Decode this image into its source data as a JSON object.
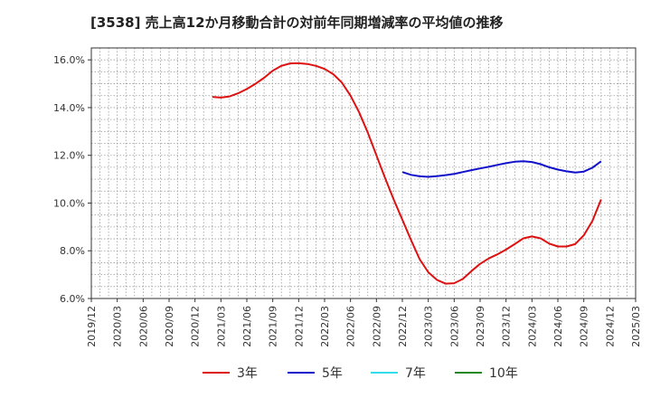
{
  "chart_data": {
    "type": "line",
    "title": "[3538]  売上高12か月移動合計の対前年同期増減率の平均値の推移",
    "x_categories": [
      "2019/12",
      "2020/03",
      "2020/06",
      "2020/09",
      "2020/12",
      "2021/03",
      "2021/06",
      "2021/09",
      "2021/12",
      "2022/03",
      "2022/06",
      "2022/09",
      "2022/12",
      "2023/03",
      "2023/06",
      "2023/09",
      "2023/12",
      "2024/03",
      "2024/06",
      "2024/09",
      "2024/12",
      "2025/03"
    ],
    "y_ticks": [
      "6.0%",
      "8.0%",
      "10.0%",
      "12.0%",
      "14.0%",
      "16.0%"
    ],
    "ylim": [
      6.0,
      16.5
    ],
    "grid": true,
    "legend_position": "bottom",
    "series": [
      {
        "name": "3年",
        "color": "#dd1111",
        "points": [
          [
            "2021/02",
            14.45
          ],
          [
            "2021/03",
            14.42
          ],
          [
            "2021/04",
            14.47
          ],
          [
            "2021/05",
            14.6
          ],
          [
            "2021/06",
            14.78
          ],
          [
            "2021/07",
            15.0
          ],
          [
            "2021/08",
            15.25
          ],
          [
            "2021/09",
            15.55
          ],
          [
            "2021/10",
            15.75
          ],
          [
            "2021/11",
            15.85
          ],
          [
            "2021/12",
            15.86
          ],
          [
            "2022/01",
            15.83
          ],
          [
            "2022/02",
            15.75
          ],
          [
            "2022/03",
            15.62
          ],
          [
            "2022/04",
            15.4
          ],
          [
            "2022/05",
            15.05
          ],
          [
            "2022/06",
            14.5
          ],
          [
            "2022/07",
            13.8
          ],
          [
            "2022/08",
            12.95
          ],
          [
            "2022/09",
            12.0
          ],
          [
            "2022/10",
            11.05
          ],
          [
            "2022/11",
            10.15
          ],
          [
            "2022/12",
            9.3
          ],
          [
            "2023/01",
            8.45
          ],
          [
            "2023/02",
            7.65
          ],
          [
            "2023/03",
            7.1
          ],
          [
            "2023/04",
            6.78
          ],
          [
            "2023/05",
            6.62
          ],
          [
            "2023/06",
            6.64
          ],
          [
            "2023/07",
            6.82
          ],
          [
            "2023/08",
            7.15
          ],
          [
            "2023/09",
            7.45
          ],
          [
            "2023/10",
            7.68
          ],
          [
            "2023/11",
            7.85
          ],
          [
            "2023/12",
            8.05
          ],
          [
            "2024/01",
            8.28
          ],
          [
            "2024/02",
            8.52
          ],
          [
            "2024/03",
            8.6
          ],
          [
            "2024/04",
            8.52
          ],
          [
            "2024/05",
            8.3
          ],
          [
            "2024/06",
            8.18
          ],
          [
            "2024/07",
            8.18
          ],
          [
            "2024/08",
            8.28
          ],
          [
            "2024/09",
            8.65
          ],
          [
            "2024/10",
            9.25
          ],
          [
            "2024/11",
            10.15
          ]
        ]
      },
      {
        "name": "5年",
        "color": "#1111cc",
        "points": [
          [
            "2022/12",
            11.3
          ],
          [
            "2023/01",
            11.18
          ],
          [
            "2023/02",
            11.12
          ],
          [
            "2023/03",
            11.1
          ],
          [
            "2023/04",
            11.13
          ],
          [
            "2023/05",
            11.17
          ],
          [
            "2023/06",
            11.22
          ],
          [
            "2023/07",
            11.3
          ],
          [
            "2023/08",
            11.38
          ],
          [
            "2023/09",
            11.45
          ],
          [
            "2023/10",
            11.52
          ],
          [
            "2023/11",
            11.6
          ],
          [
            "2023/12",
            11.67
          ],
          [
            "2024/01",
            11.73
          ],
          [
            "2024/02",
            11.75
          ],
          [
            "2024/03",
            11.72
          ],
          [
            "2024/04",
            11.63
          ],
          [
            "2024/05",
            11.5
          ],
          [
            "2024/06",
            11.4
          ],
          [
            "2024/07",
            11.33
          ],
          [
            "2024/08",
            11.28
          ],
          [
            "2024/09",
            11.32
          ],
          [
            "2024/10",
            11.48
          ],
          [
            "2024/11",
            11.75
          ]
        ]
      },
      {
        "name": "7年",
        "color": "#33ddee",
        "points": []
      },
      {
        "name": "10年",
        "color": "#228822",
        "points": []
      }
    ]
  }
}
